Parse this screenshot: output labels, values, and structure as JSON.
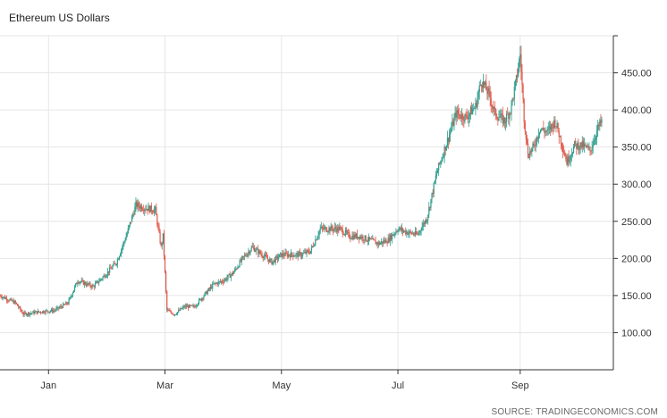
{
  "title": "Ethereum US Dollars",
  "source": "SOURCE: TRADINGECONOMICS.COM",
  "colors": {
    "up": "#2f9e8e",
    "down": "#e0584a",
    "grid": "#e6e6e6",
    "axis": "#333333"
  },
  "chart_data": {
    "type": "candlestick",
    "title": "Ethereum US Dollars",
    "ylim": [
      50,
      500
    ],
    "y_ticks": [
      100,
      150,
      200,
      250,
      300,
      350,
      400,
      450
    ],
    "y_tick_labels": [
      "100.00",
      "150.00",
      "200.00",
      "250.00",
      "300.00",
      "350.00",
      "400.00",
      "450.00"
    ],
    "x_tick_labels": [
      "Jan",
      "Mar",
      "May",
      "Jul",
      "Sep"
    ],
    "x_tick_days": [
      25,
      85,
      145,
      205,
      268
    ],
    "x_range_days": [
      0,
      310
    ],
    "grid": true,
    "keypoints": [
      {
        "day": 0,
        "price": 150
      },
      {
        "day": 8,
        "price": 140
      },
      {
        "day": 12,
        "price": 125
      },
      {
        "day": 20,
        "price": 128
      },
      {
        "day": 28,
        "price": 130
      },
      {
        "day": 35,
        "price": 140
      },
      {
        "day": 40,
        "price": 170
      },
      {
        "day": 48,
        "price": 162
      },
      {
        "day": 55,
        "price": 180
      },
      {
        "day": 60,
        "price": 195
      },
      {
        "day": 65,
        "price": 230
      },
      {
        "day": 70,
        "price": 272
      },
      {
        "day": 75,
        "price": 268
      },
      {
        "day": 80,
        "price": 265
      },
      {
        "day": 83,
        "price": 215
      },
      {
        "day": 84,
        "price": 230
      },
      {
        "day": 86,
        "price": 130
      },
      {
        "day": 90,
        "price": 125
      },
      {
        "day": 95,
        "price": 135
      },
      {
        "day": 100,
        "price": 135
      },
      {
        "day": 105,
        "price": 150
      },
      {
        "day": 110,
        "price": 165
      },
      {
        "day": 115,
        "price": 170
      },
      {
        "day": 120,
        "price": 180
      },
      {
        "day": 125,
        "price": 200
      },
      {
        "day": 130,
        "price": 215
      },
      {
        "day": 135,
        "price": 205
      },
      {
        "day": 140,
        "price": 195
      },
      {
        "day": 145,
        "price": 205
      },
      {
        "day": 150,
        "price": 205
      },
      {
        "day": 155,
        "price": 205
      },
      {
        "day": 160,
        "price": 210
      },
      {
        "day": 165,
        "price": 240
      },
      {
        "day": 170,
        "price": 240
      },
      {
        "day": 175,
        "price": 240
      },
      {
        "day": 180,
        "price": 230
      },
      {
        "day": 185,
        "price": 230
      },
      {
        "day": 190,
        "price": 225
      },
      {
        "day": 195,
        "price": 220
      },
      {
        "day": 200,
        "price": 225
      },
      {
        "day": 205,
        "price": 240
      },
      {
        "day": 210,
        "price": 235
      },
      {
        "day": 215,
        "price": 232
      },
      {
        "day": 220,
        "price": 255
      },
      {
        "day": 225,
        "price": 315
      },
      {
        "day": 230,
        "price": 355
      },
      {
        "day": 235,
        "price": 395
      },
      {
        "day": 240,
        "price": 390
      },
      {
        "day": 245,
        "price": 405
      },
      {
        "day": 248,
        "price": 440
      },
      {
        "day": 252,
        "price": 420
      },
      {
        "day": 255,
        "price": 395
      },
      {
        "day": 260,
        "price": 385
      },
      {
        "day": 263,
        "price": 400
      },
      {
        "day": 266,
        "price": 440
      },
      {
        "day": 268,
        "price": 475
      },
      {
        "day": 270,
        "price": 390
      },
      {
        "day": 272,
        "price": 340
      },
      {
        "day": 275,
        "price": 350
      },
      {
        "day": 278,
        "price": 375
      },
      {
        "day": 282,
        "price": 370
      },
      {
        "day": 286,
        "price": 385
      },
      {
        "day": 290,
        "price": 350
      },
      {
        "day": 292,
        "price": 330
      },
      {
        "day": 296,
        "price": 352
      },
      {
        "day": 300,
        "price": 352
      },
      {
        "day": 304,
        "price": 345
      },
      {
        "day": 308,
        "price": 375
      },
      {
        "day": 310,
        "price": 385
      }
    ]
  }
}
